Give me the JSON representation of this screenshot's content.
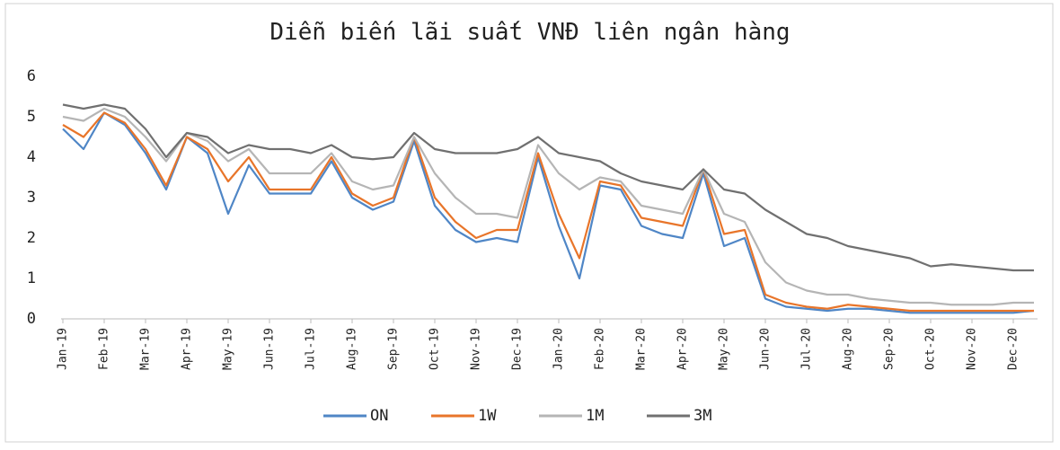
{
  "chart_data": {
    "type": "line",
    "title": "Diễn biến lãi suất VNĐ liên ngân hàng",
    "categories": [
      "Jan-19",
      null,
      "Feb-19",
      null,
      "Mar-19",
      null,
      "Apr-19",
      null,
      "May-19",
      null,
      "Jun-19",
      null,
      "Jul-19",
      null,
      "Aug-19",
      null,
      "Sep-19",
      null,
      "Oct-19",
      null,
      "Nov-19",
      null,
      "Dec-19",
      null,
      "Jan-20",
      null,
      "Feb-20",
      null,
      "Mar-20",
      null,
      "Apr-20",
      null,
      "May-20",
      null,
      "Jun-20",
      null,
      "Jul-20",
      null,
      "Aug-20",
      null,
      "Sep-20",
      null,
      "Oct-20",
      null,
      "Nov-20",
      null,
      "Dec-20",
      null
    ],
    "series": [
      {
        "name": "ON",
        "color": "#4f86c6",
        "values": [
          4.7,
          4.2,
          5.1,
          4.8,
          4.1,
          3.2,
          4.5,
          4.1,
          2.6,
          3.8,
          3.1,
          3.1,
          3.1,
          3.9,
          3.0,
          2.7,
          2.9,
          4.4,
          2.8,
          2.2,
          1.9,
          2.0,
          1.9,
          4.0,
          2.3,
          1.0,
          3.3,
          3.2,
          2.3,
          2.1,
          2.0,
          3.6,
          1.8,
          2.0,
          0.5,
          0.3,
          0.25,
          0.2,
          0.25,
          0.25,
          0.2,
          0.15,
          0.15,
          0.15,
          0.15,
          0.15,
          0.15,
          0.2
        ]
      },
      {
        "name": "1W",
        "color": "#e8752a",
        "values": [
          4.8,
          4.5,
          5.1,
          4.85,
          4.2,
          3.3,
          4.5,
          4.2,
          3.4,
          4.0,
          3.2,
          3.2,
          3.2,
          4.0,
          3.1,
          2.8,
          3.0,
          4.5,
          3.0,
          2.4,
          2.0,
          2.2,
          2.2,
          4.1,
          2.6,
          1.5,
          3.4,
          3.3,
          2.5,
          2.4,
          2.3,
          3.7,
          2.1,
          2.2,
          0.6,
          0.4,
          0.3,
          0.25,
          0.35,
          0.3,
          0.25,
          0.2,
          0.2,
          0.2,
          0.2,
          0.2,
          0.2,
          0.2
        ]
      },
      {
        "name": "1M",
        "color": "#b5b5b5",
        "values": [
          5.0,
          4.9,
          5.2,
          5.0,
          4.5,
          3.9,
          4.6,
          4.4,
          3.9,
          4.2,
          3.6,
          3.6,
          3.6,
          4.1,
          3.4,
          3.2,
          3.3,
          4.5,
          3.6,
          3.0,
          2.6,
          2.6,
          2.5,
          4.3,
          3.6,
          3.2,
          3.5,
          3.4,
          2.8,
          2.7,
          2.6,
          3.7,
          2.6,
          2.4,
          1.4,
          0.9,
          0.7,
          0.6,
          0.6,
          0.5,
          0.45,
          0.4,
          0.4,
          0.35,
          0.35,
          0.35,
          0.4,
          0.4
        ]
      },
      {
        "name": "3M",
        "color": "#707070",
        "values": [
          5.3,
          5.2,
          5.3,
          5.2,
          4.7,
          4.0,
          4.6,
          4.5,
          4.1,
          4.3,
          4.2,
          4.2,
          4.1,
          4.3,
          4.0,
          3.95,
          4.0,
          4.6,
          4.2,
          4.1,
          4.1,
          4.1,
          4.2,
          4.5,
          4.1,
          4.0,
          3.9,
          3.6,
          3.4,
          3.3,
          3.2,
          3.7,
          3.2,
          3.1,
          2.7,
          2.4,
          2.1,
          2.0,
          1.8,
          1.7,
          1.6,
          1.5,
          1.3,
          1.35,
          1.3,
          1.25,
          1.2,
          1.2
        ]
      }
    ],
    "ylim": [
      0,
      6
    ],
    "yticks": [
      0,
      1,
      2,
      3,
      4,
      5,
      6
    ],
    "grid": false,
    "legend": "bottom"
  }
}
